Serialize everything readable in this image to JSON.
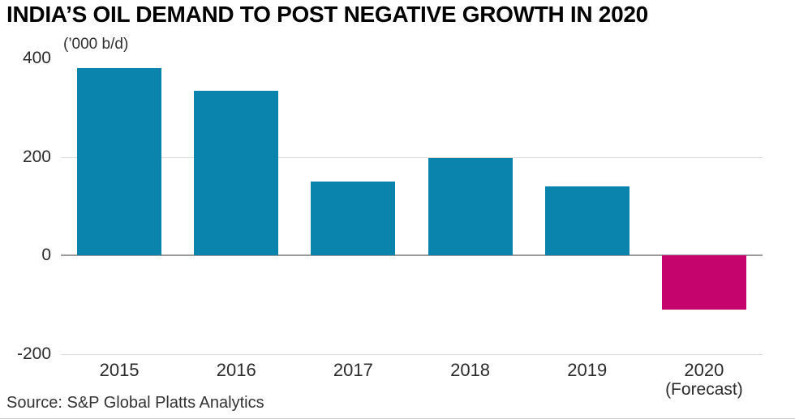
{
  "chart_data": {
    "type": "bar",
    "title": "INDIA’S OIL DEMAND TO POST NEGATIVE GROWTH IN 2020",
    "unit_label": "(’000 b/d)",
    "categories": [
      "2015",
      "2016",
      "2017",
      "2018",
      "2019",
      "2020"
    ],
    "category_sublabels": [
      "",
      "",
      "",
      "",
      "",
      "(Forecast)"
    ],
    "values": [
      380,
      335,
      150,
      198,
      140,
      -110
    ],
    "colors": [
      "#0a84ad",
      "#0a84ad",
      "#0a84ad",
      "#0a84ad",
      "#0a84ad",
      "#c5046d"
    ],
    "bar_color": "#0a84ad",
    "highlight_color": "#c5046d",
    "xlabel": "",
    "ylabel": "(’000 b/d)",
    "ylim": [
      -200,
      400
    ],
    "yticks": [
      {
        "label": "400",
        "value": 400,
        "grid": false,
        "axis": false
      },
      {
        "label": "200",
        "value": 200,
        "grid": true,
        "axis": false
      },
      {
        "label": "0",
        "value": 0,
        "grid": true,
        "axis": true
      },
      {
        "label": "-200",
        "value": -200,
        "grid": true,
        "axis": false
      }
    ],
    "grid": true,
    "legend": "none",
    "source": "Source: S&P Global Platts Analytics"
  }
}
